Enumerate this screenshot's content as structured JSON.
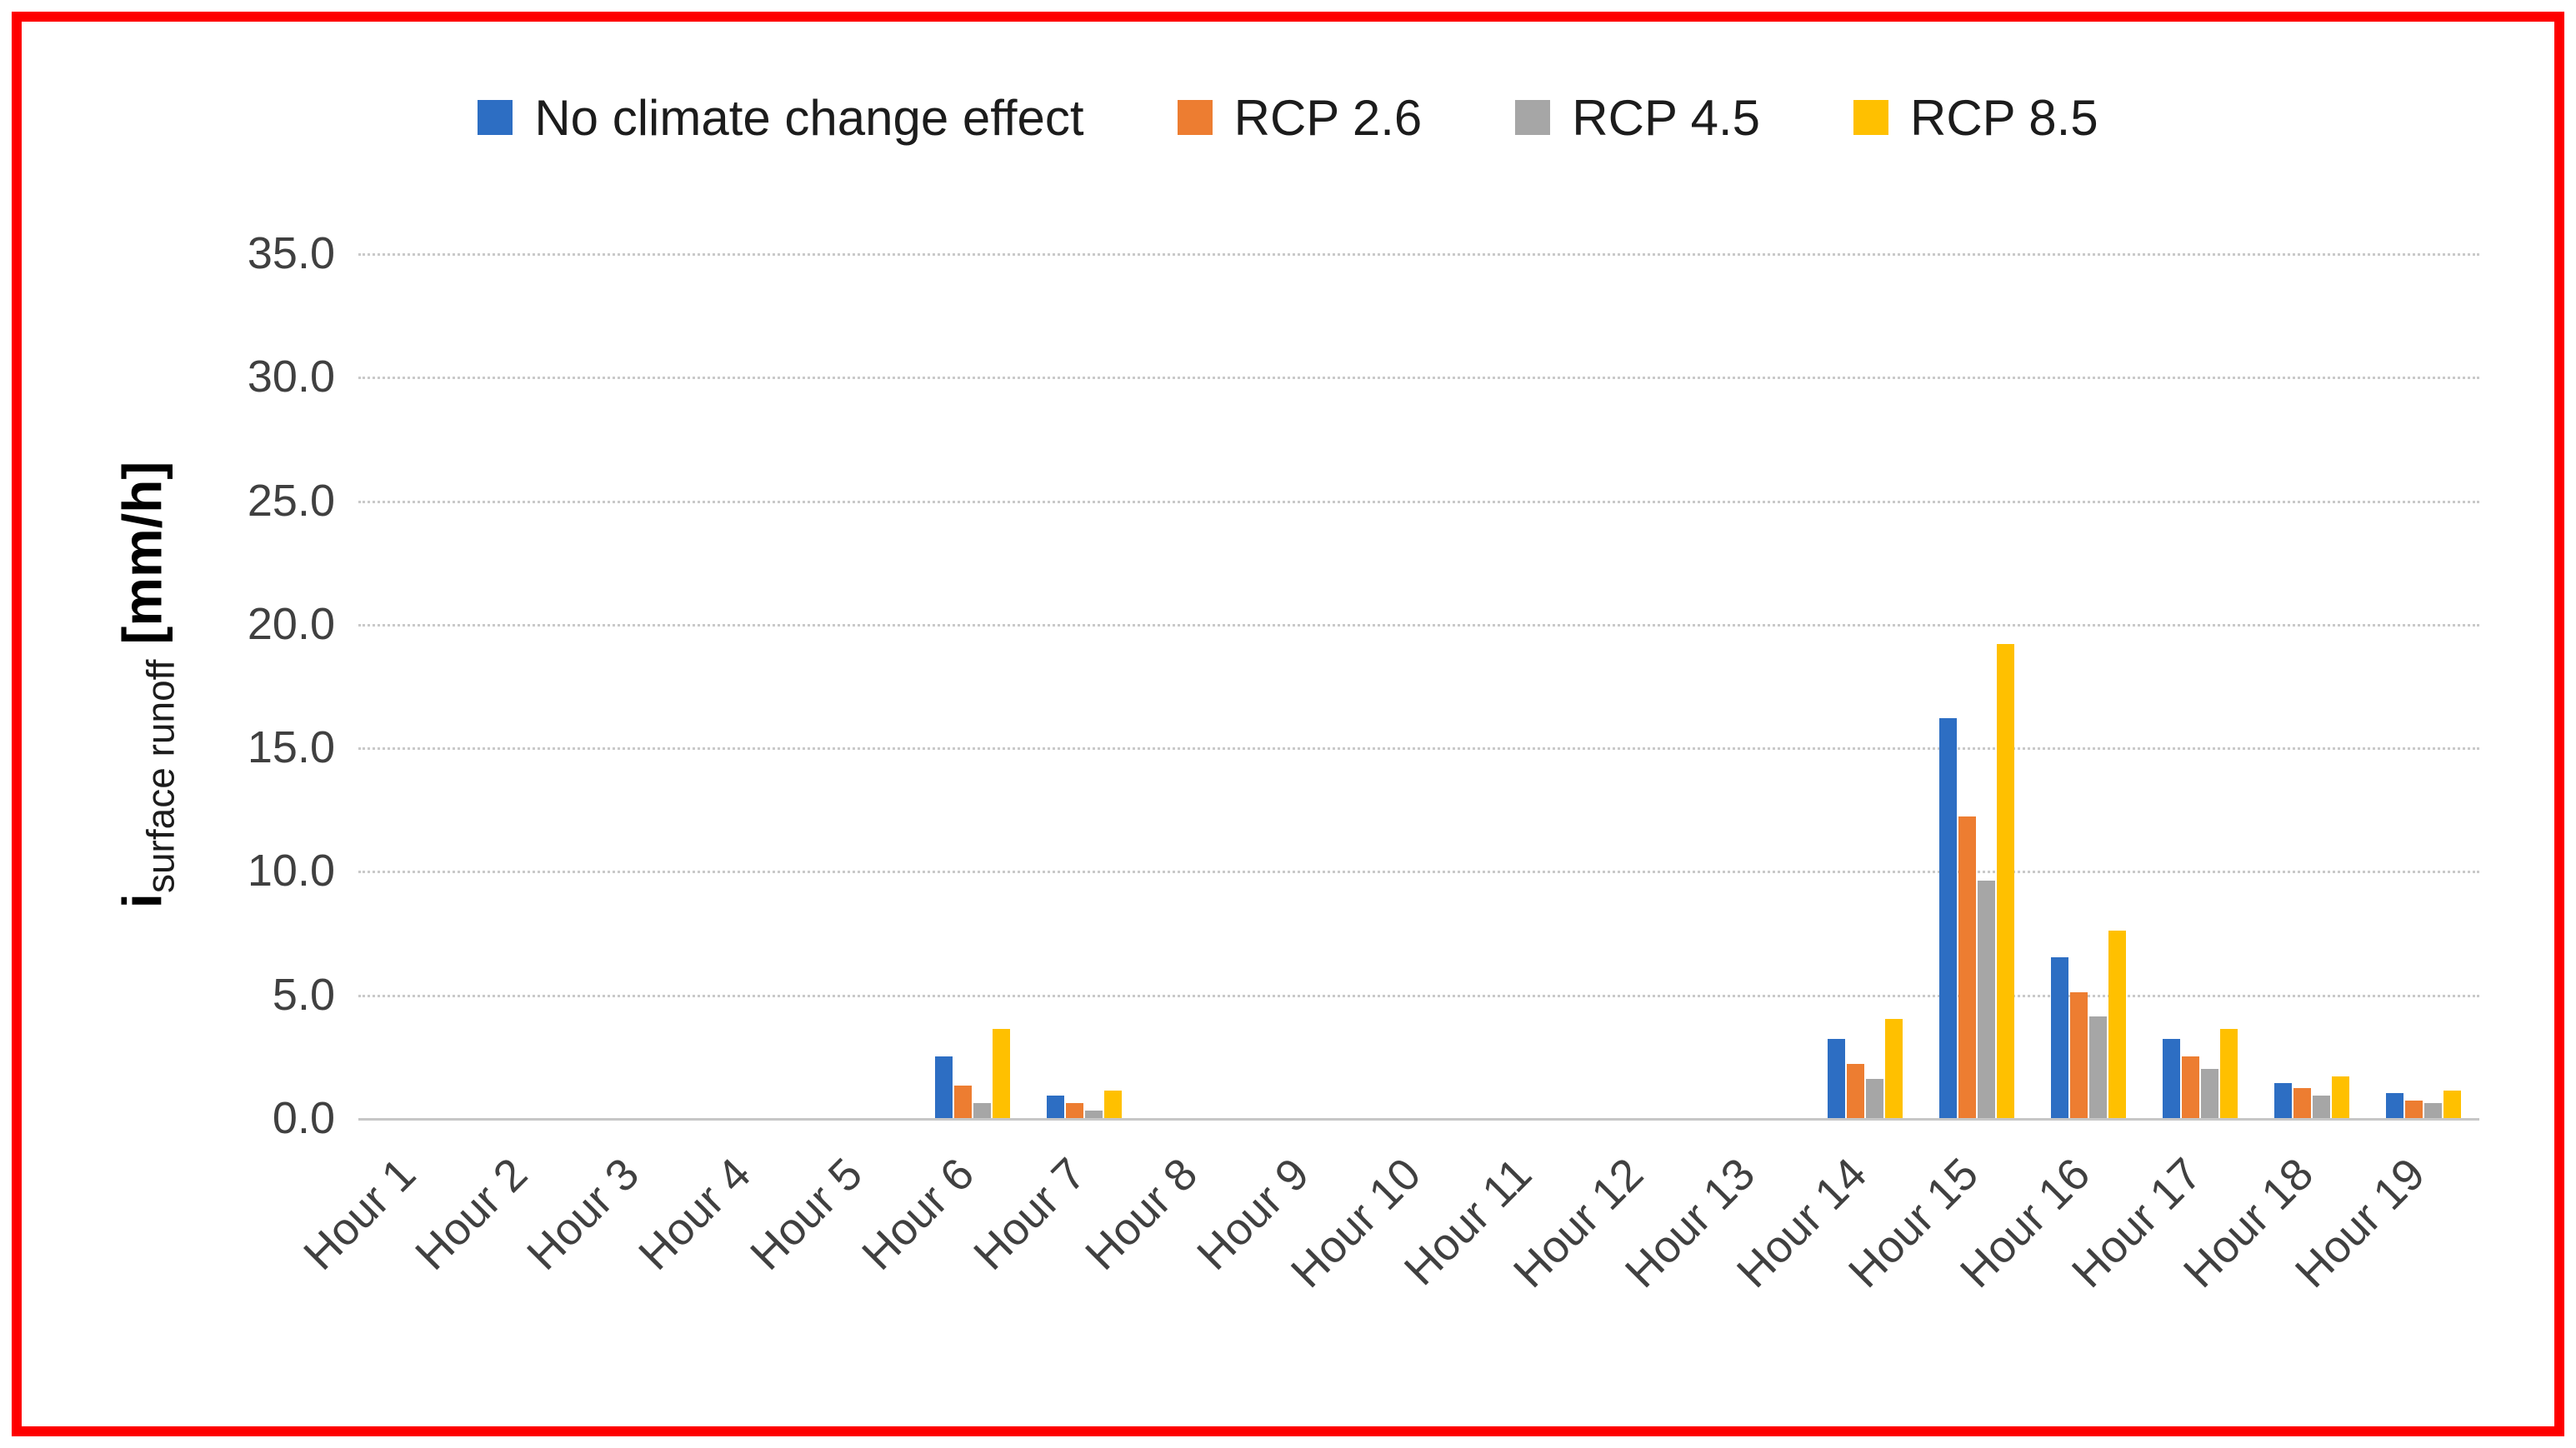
{
  "figure": {
    "border_color": "#FE0000",
    "background": "#FFFFFF"
  },
  "legend": {
    "items": [
      {
        "label": "No climate change effect",
        "color": "#2D6EC3",
        "icon": "square-swatch"
      },
      {
        "label": "RCP 2.6",
        "color": "#ED7D31",
        "icon": "square-swatch"
      },
      {
        "label": "RCP 4.5",
        "color": "#A6A6A6",
        "icon": "square-swatch"
      },
      {
        "label": "RCP 8.5",
        "color": "#FFC000",
        "icon": "square-swatch"
      }
    ]
  },
  "y_axis": {
    "title_main": "i",
    "title_sub": "surface runoff",
    "title_unit": "[mm/h]",
    "ticks": [
      "35.0",
      "30.0",
      "25.0",
      "20.0",
      "15.0",
      "10.0",
      "5.0",
      "0.0"
    ]
  },
  "chart_data": {
    "type": "bar",
    "title": "",
    "xlabel": "",
    "ylabel": "i surface runoff [mm/h]",
    "ylim": [
      0,
      35
    ],
    "ytick_step": 5,
    "grid": true,
    "legend_position": "top",
    "categories": [
      "Hour 1",
      "Hour 2",
      "Hour 3",
      "Hour 4",
      "Hour 5",
      "Hour 6",
      "Hour 7",
      "Hour 8",
      "Hour 9",
      "Hour 10",
      "Hour 11",
      "Hour 12",
      "Hour 13",
      "Hour 14",
      "Hour 15",
      "Hour 16",
      "Hour 17",
      "Hour 18",
      "Hour 19"
    ],
    "series": [
      {
        "name": "No climate change effect",
        "color": "#2D6EC3",
        "values": [
          0,
          0,
          0,
          0,
          0,
          2.5,
          0.9,
          0,
          0,
          0,
          0,
          0,
          0,
          3.2,
          16.2,
          6.5,
          3.2,
          1.4,
          1.0
        ]
      },
      {
        "name": "RCP 2.6",
        "color": "#ED7D31",
        "values": [
          0,
          0,
          0,
          0,
          0,
          1.3,
          0.6,
          0,
          0,
          0,
          0,
          0,
          0,
          2.2,
          12.2,
          5.1,
          2.5,
          1.2,
          0.7
        ]
      },
      {
        "name": "RCP 4.5",
        "color": "#A6A6A6",
        "values": [
          0,
          0,
          0,
          0,
          0,
          0.6,
          0.3,
          0,
          0,
          0,
          0,
          0,
          0,
          1.6,
          9.6,
          4.1,
          2.0,
          0.9,
          0.6
        ]
      },
      {
        "name": "RCP 8.5",
        "color": "#FFC000",
        "values": [
          0,
          0,
          0,
          0,
          0,
          3.6,
          1.1,
          0,
          0,
          0,
          0,
          0,
          0,
          4.0,
          19.2,
          7.6,
          3.6,
          1.7,
          1.1
        ]
      }
    ]
  }
}
